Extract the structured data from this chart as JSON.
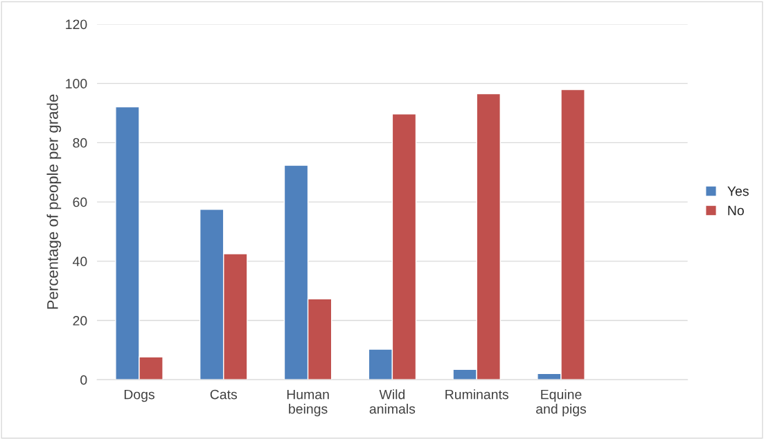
{
  "chart_data": {
    "type": "bar",
    "ylabel": "Percentage of people per grade",
    "categories": [
      "Dogs",
      "Cats",
      "Human beings",
      "Wild animals",
      "Ruminants",
      "Equine and pigs",
      null
    ],
    "series": [
      {
        "name": "Yes",
        "color": "#4f81bd",
        "values": [
          92.1,
          57.5,
          72.4,
          10.3,
          3.5,
          2.1,
          null
        ]
      },
      {
        "name": "No",
        "color": "#c0504d",
        "values": [
          7.7,
          42.5,
          27.3,
          89.7,
          96.5,
          97.9,
          null
        ]
      }
    ],
    "ylim": [
      0,
      120
    ],
    "yticks": [
      0,
      20,
      40,
      60,
      80,
      100,
      120
    ],
    "grid": "y",
    "legend": "right"
  }
}
